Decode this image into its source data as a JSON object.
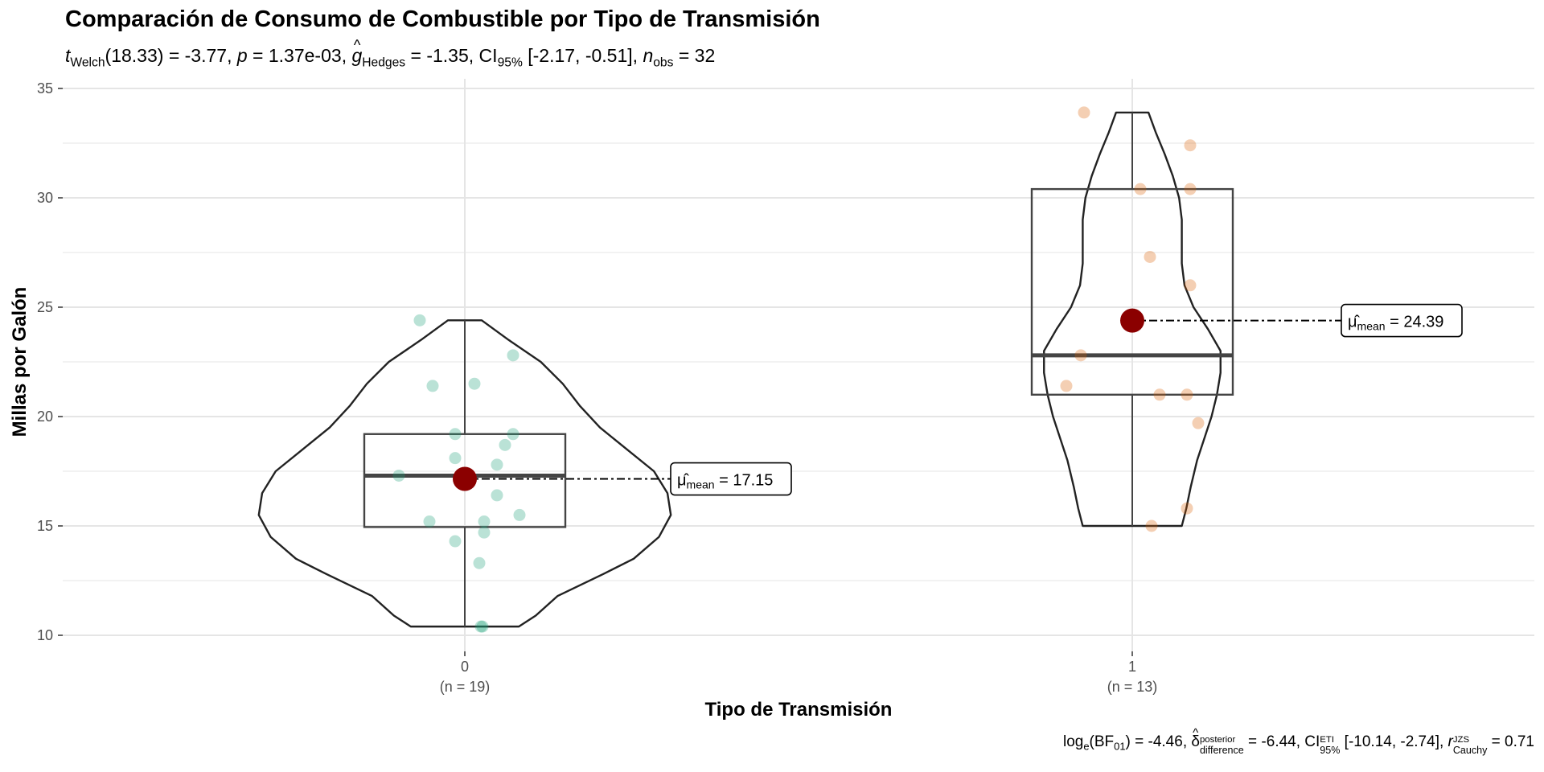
{
  "chart_data": {
    "type": "violin",
    "title": "Comparación de Consumo de Combustible por Tipo de Transmisión",
    "subtitle": {
      "stat_name": "Welch",
      "df": "18.33",
      "t": "-3.77",
      "p": "1.37e-03",
      "effect_name": "Hedges",
      "g": "-1.35",
      "ci_level": "95%",
      "ci": "[-2.17, -0.51]",
      "n_obs": "32"
    },
    "caption": {
      "log_bf01": "-4.46",
      "delta_sup": "posterior",
      "delta_sub": "difference",
      "delta": "-6.44",
      "ci_sup": "ETI",
      "ci_sub": "95%",
      "ci": "[-10.14, -2.74]",
      "r_sup": "JZS",
      "r_sub": "Cauchy",
      "r": "0.71"
    },
    "xlabel": "Tipo de Transmisión",
    "ylabel": "Millas por Galón",
    "ylim": [
      10,
      35
    ],
    "yticks": [
      10,
      15,
      20,
      25,
      30,
      35
    ],
    "grid": true,
    "categories": [
      {
        "label": "0",
        "n_label": "(n = 19)",
        "color": "#1b9e77",
        "mean": 17.15,
        "mean_label": "17.15",
        "box": {
          "min": 10.4,
          "q1": 14.95,
          "median": 17.3,
          "q3": 19.2,
          "max": 24.4
        },
        "points": [
          24.4,
          22.8,
          21.5,
          21.4,
          19.2,
          19.2,
          18.7,
          18.1,
          17.8,
          17.3,
          16.4,
          15.5,
          15.2,
          15.2,
          14.7,
          14.3,
          13.3,
          10.4,
          10.4
        ]
      },
      {
        "label": "1",
        "n_label": "(n = 13)",
        "color": "#d95f02",
        "mean": 24.39,
        "mean_label": "24.39",
        "box": {
          "min": 15.0,
          "q1": 21.0,
          "median": 22.8,
          "q3": 30.4,
          "max": 33.9
        },
        "points": [
          33.9,
          32.4,
          30.4,
          30.4,
          27.3,
          26.0,
          22.8,
          21.4,
          21.0,
          21.0,
          19.7,
          15.8,
          15.0
        ]
      }
    ],
    "mean_marker_color": "#8b0000"
  }
}
